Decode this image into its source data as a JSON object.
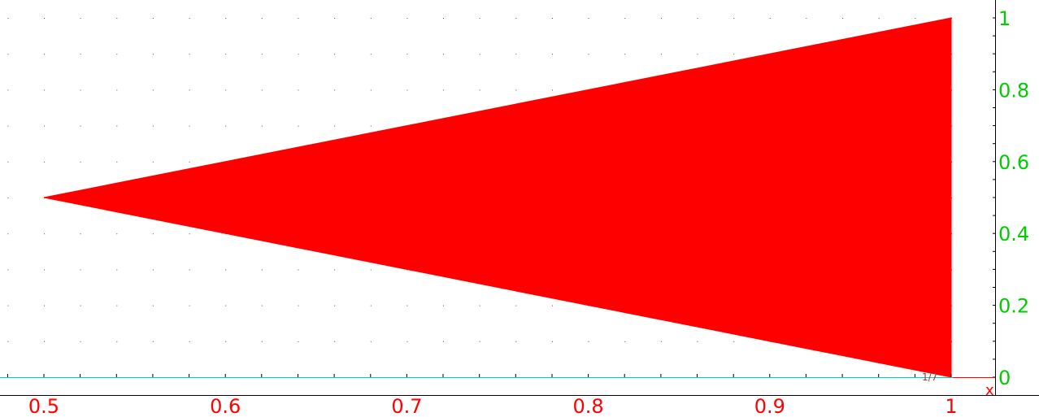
{
  "chart_data": {
    "type": "area",
    "title": "",
    "xlabel": "x",
    "ylabel": "",
    "xlim": [
      0.48,
      1.025
    ],
    "ylim": [
      0,
      1.025
    ],
    "grid": true,
    "grid_style": "dotted",
    "x_ticks": [
      0.5,
      0.6,
      0.7,
      0.8,
      0.9,
      1
    ],
    "x_tick_labels": [
      "0.5",
      "0.6",
      "0.7",
      "0.8",
      "0.9",
      "1"
    ],
    "y_ticks": [
      0,
      0.2,
      0.4,
      0.6,
      0.8,
      1
    ],
    "y_tick_labels": [
      "0",
      "0.2",
      "0.4",
      "0.6",
      "0.8",
      "1"
    ],
    "polygon": [
      {
        "x": 0.5,
        "y": 0.5
      },
      {
        "x": 1,
        "y": 1
      },
      {
        "x": 1,
        "y": 0
      }
    ],
    "corner_note": "1/7"
  },
  "colors": {
    "fill": "#ff0000",
    "x_axis_text": "#ff0000",
    "y_axis_text": "#00cc00",
    "baseline": "#00cccc",
    "frame": "#000000"
  }
}
